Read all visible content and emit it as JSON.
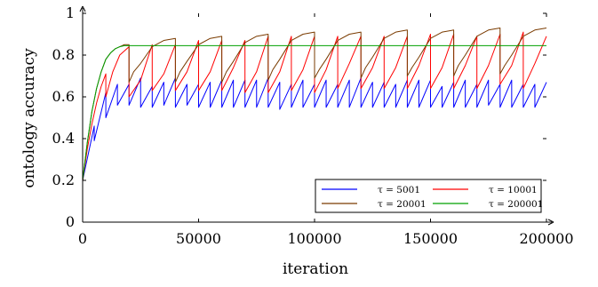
{
  "chart_data": {
    "type": "line",
    "xlabel": "iteration",
    "ylabel": "ontology accuracy",
    "xlim": [
      0,
      200000
    ],
    "ylim": [
      0,
      1
    ],
    "x_ticks": [
      0,
      50000,
      100000,
      150000,
      200000
    ],
    "x_tick_labels": [
      "0",
      "50000",
      "100000",
      "150000",
      "200000"
    ],
    "y_ticks": [
      0,
      0.2,
      0.4,
      0.6,
      0.8,
      1
    ],
    "y_tick_labels": [
      "0",
      "0.2",
      "0.4",
      "0.6",
      "0.8",
      "1"
    ],
    "grid": false,
    "legend_position": "bottom-right",
    "legend_columns": 2,
    "series": [
      {
        "name": "τ = 5001",
        "color": "#0000ff",
        "x": [
          0,
          5000,
          5001,
          10000,
          10001,
          15000,
          15001,
          20000,
          20001,
          25000,
          25001,
          30000,
          30001,
          35000,
          35001,
          40000,
          40001,
          45000,
          45001,
          50000,
          50001,
          55000,
          55001,
          60000,
          60001,
          65000,
          65001,
          70000,
          70001,
          75000,
          75001,
          80000,
          80001,
          85000,
          85001,
          90000,
          90001,
          95000,
          95001,
          100000,
          100001,
          105000,
          105001,
          110000,
          110001,
          115000,
          115001,
          120000,
          120001,
          125000,
          125001,
          130000,
          130001,
          135000,
          135001,
          140000,
          140001,
          145000,
          145001,
          150000,
          150001,
          155000,
          155001,
          160000,
          160001,
          165000,
          165001,
          170000,
          170001,
          175000,
          175001,
          180000,
          180001,
          185000,
          185001,
          190000,
          190001,
          195000,
          195001,
          200000
        ],
        "y": [
          0.2,
          0.46,
          0.39,
          0.62,
          0.5,
          0.66,
          0.56,
          0.66,
          0.56,
          0.69,
          0.55,
          0.65,
          0.55,
          0.67,
          0.56,
          0.69,
          0.55,
          0.66,
          0.56,
          0.66,
          0.55,
          0.67,
          0.55,
          0.68,
          0.55,
          0.68,
          0.55,
          0.68,
          0.55,
          0.68,
          0.55,
          0.69,
          0.55,
          0.67,
          0.54,
          0.66,
          0.55,
          0.68,
          0.55,
          0.66,
          0.55,
          0.68,
          0.55,
          0.66,
          0.55,
          0.68,
          0.55,
          0.69,
          0.55,
          0.67,
          0.55,
          0.67,
          0.55,
          0.66,
          0.55,
          0.68,
          0.55,
          0.68,
          0.55,
          0.68,
          0.55,
          0.65,
          0.55,
          0.67,
          0.55,
          0.68,
          0.55,
          0.66,
          0.55,
          0.68,
          0.56,
          0.66,
          0.55,
          0.68,
          0.55,
          0.66,
          0.55,
          0.66,
          0.55,
          0.67
        ]
      },
      {
        "name": "τ = 10001",
        "color": "#ff0000",
        "x": [
          0,
          2000,
          4000,
          6000,
          8000,
          10000,
          10001,
          13000,
          16000,
          20000,
          20001,
          25000,
          30000,
          30001,
          35000,
          40000,
          40001,
          45000,
          50000,
          50001,
          55000,
          60000,
          60001,
          65000,
          70000,
          70001,
          75000,
          80000,
          80001,
          85000,
          90000,
          90001,
          95000,
          100000,
          100001,
          105000,
          110000,
          110001,
          115000,
          120000,
          120001,
          125000,
          130000,
          130001,
          135000,
          140000,
          140001,
          145000,
          150000,
          150001,
          155000,
          160000,
          160001,
          165000,
          170000,
          170001,
          175000,
          180000,
          180001,
          185000,
          190000,
          190001,
          195000,
          200000
        ],
        "y": [
          0.2,
          0.35,
          0.47,
          0.57,
          0.65,
          0.71,
          0.6,
          0.72,
          0.8,
          0.84,
          0.6,
          0.68,
          0.85,
          0.63,
          0.71,
          0.85,
          0.63,
          0.72,
          0.87,
          0.63,
          0.72,
          0.87,
          0.63,
          0.74,
          0.87,
          0.62,
          0.72,
          0.89,
          0.62,
          0.72,
          0.89,
          0.63,
          0.73,
          0.89,
          0.62,
          0.73,
          0.89,
          0.64,
          0.76,
          0.89,
          0.64,
          0.74,
          0.89,
          0.64,
          0.74,
          0.89,
          0.64,
          0.75,
          0.9,
          0.64,
          0.74,
          0.9,
          0.64,
          0.75,
          0.89,
          0.64,
          0.75,
          0.9,
          0.66,
          0.75,
          0.91,
          0.64,
          0.76,
          0.89
        ]
      },
      {
        "name": "τ = 20001",
        "color": "#7a3b00",
        "x": [
          0,
          2000,
          4000,
          6000,
          8000,
          10000,
          12000,
          14000,
          16000,
          18000,
          20000,
          20001,
          22000,
          25000,
          30000,
          35000,
          40000,
          40001,
          42000,
          45000,
          50000,
          55000,
          60000,
          60001,
          62000,
          65000,
          70000,
          75000,
          80000,
          80001,
          82000,
          85000,
          90000,
          95000,
          100000,
          100001,
          102000,
          105000,
          110000,
          115000,
          120000,
          120001,
          122000,
          125000,
          130000,
          135000,
          140000,
          140001,
          142000,
          145000,
          150000,
          155000,
          160000,
          160001,
          162000,
          165000,
          170000,
          175000,
          180000,
          180001,
          182000,
          185000,
          190000,
          195000,
          200000
        ],
        "y": [
          0.2,
          0.38,
          0.53,
          0.64,
          0.72,
          0.78,
          0.81,
          0.83,
          0.84,
          0.85,
          0.85,
          0.67,
          0.72,
          0.76,
          0.84,
          0.87,
          0.88,
          0.67,
          0.72,
          0.77,
          0.85,
          0.88,
          0.89,
          0.67,
          0.72,
          0.77,
          0.86,
          0.89,
          0.9,
          0.68,
          0.73,
          0.78,
          0.87,
          0.9,
          0.91,
          0.69,
          0.73,
          0.78,
          0.87,
          0.9,
          0.91,
          0.69,
          0.74,
          0.79,
          0.88,
          0.91,
          0.92,
          0.7,
          0.74,
          0.79,
          0.88,
          0.91,
          0.92,
          0.7,
          0.75,
          0.8,
          0.89,
          0.92,
          0.93,
          0.71,
          0.75,
          0.8,
          0.89,
          0.92,
          0.93
        ]
      },
      {
        "name": "τ = 200001",
        "color": "#00a000",
        "x": [
          0,
          2000,
          4000,
          6000,
          8000,
          10000,
          12000,
          14000,
          16000,
          18000,
          20000,
          25000,
          200000
        ],
        "y": [
          0.2,
          0.38,
          0.53,
          0.64,
          0.72,
          0.78,
          0.81,
          0.83,
          0.84,
          0.845,
          0.845,
          0.845,
          0.845
        ]
      }
    ]
  }
}
